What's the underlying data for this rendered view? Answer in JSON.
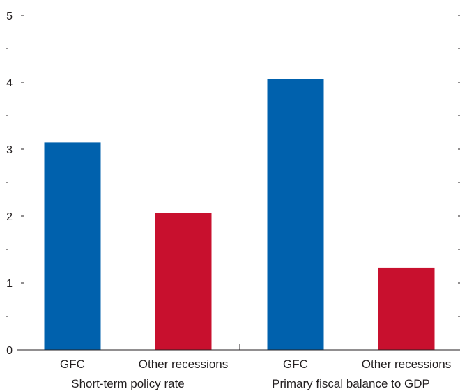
{
  "chart_data": {
    "type": "bar",
    "groups": [
      {
        "label": "Short-term policy rate",
        "categories": [
          "GFC",
          "Other recessions"
        ],
        "values": [
          3.1,
          2.05
        ]
      },
      {
        "label": "Primary fiscal balance to GDP",
        "categories": [
          "GFC",
          "Other recessions"
        ],
        "values": [
          4.05,
          1.23
        ]
      }
    ],
    "ylim": [
      0,
      5
    ],
    "y_major_ticks": [
      "0",
      "1",
      "2",
      "3",
      "4",
      "5"
    ],
    "y_minor_ticks": [
      0.5,
      1.5,
      2.5,
      3.5,
      4.5
    ],
    "colors": {
      "GFC": "#0061ad",
      "Other recessions": "#c8102e"
    },
    "title": "",
    "xlabel": "",
    "ylabel": "",
    "grid": false,
    "legend": "none"
  }
}
